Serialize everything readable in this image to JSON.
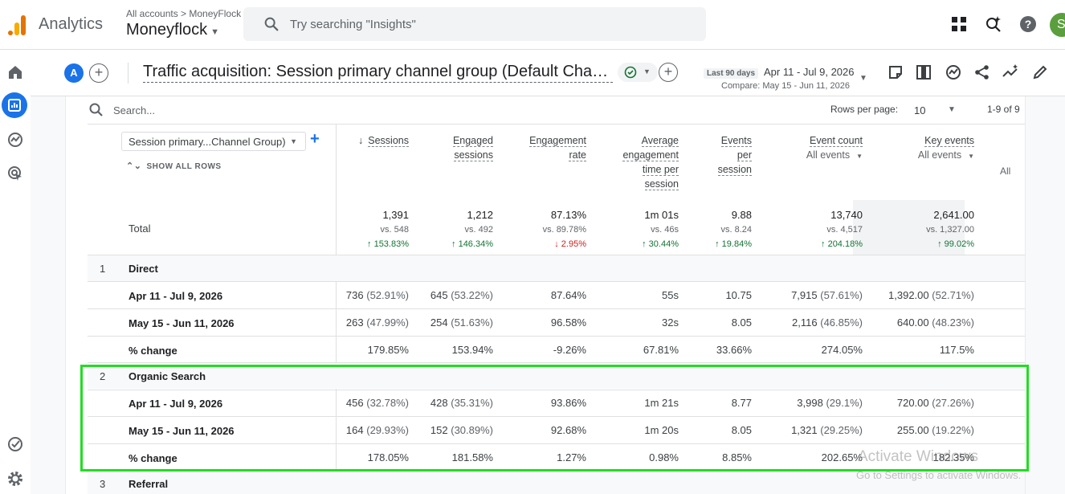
{
  "app": {
    "name": "Analytics",
    "breadcrumb": "All accounts > MoneyFlock",
    "account": "Moneyflock",
    "search_placeholder": "Try searching \"Insights\"",
    "user_initial": "S"
  },
  "report": {
    "property_badge": "A",
    "title": "Traffic acquisition: Session primary channel group (Default Chan...",
    "date_preset": "Last 90 days",
    "date_range": "Apr 11 - Jul 9, 2026",
    "compare_range": "Compare: May 15 - Jun 11, 2026"
  },
  "table_controls": {
    "search_placeholder": "Search...",
    "rows_per_page_label": "Rows per page:",
    "rows_per_page_value": "10",
    "pagination": "1-9 of 9"
  },
  "dimension": {
    "selector_label": "Session primary...Channel Group)",
    "show_all_rows": "SHOW ALL ROWS"
  },
  "columns": [
    {
      "lines": [
        "Sessions"
      ],
      "sorted": true
    },
    {
      "lines": [
        "Engaged",
        "sessions"
      ]
    },
    {
      "lines": [
        "Engagement",
        "rate"
      ]
    },
    {
      "lines": [
        "Average",
        "engagement",
        "time per",
        "session"
      ]
    },
    {
      "lines": [
        "Events",
        "per",
        "session"
      ]
    },
    {
      "lines": [
        "Event count"
      ],
      "sub": "All events"
    },
    {
      "lines": [
        "Key events"
      ],
      "sub": "All events"
    }
  ],
  "overflow_column_label": "All",
  "totals": {
    "label": "Total",
    "values": [
      "1,391",
      "1,212",
      "87.13%",
      "1m 01s",
      "9.88",
      "13,740",
      "2,641.00"
    ],
    "compare": [
      "vs. 548",
      "vs. 492",
      "vs. 89.78%",
      "vs. 46s",
      "vs. 8.24",
      "vs. 4,517",
      "vs. 1,327.00"
    ],
    "change": [
      "↑ 153.83%",
      "↑ 146.34%",
      "↓ 2.95%",
      "↑ 30.44%",
      "↑ 19.84%",
      "↑ 204.18%",
      "↑ 99.02%"
    ],
    "change_direction": [
      "up",
      "up",
      "down",
      "up",
      "up",
      "up",
      "up"
    ]
  },
  "groups": [
    {
      "index": "1",
      "name": "Direct",
      "rows": [
        {
          "label": "Apr 11 - Jul 9, 2026",
          "cells": [
            [
              "736",
              "(52.91%)"
            ],
            [
              "645",
              "(53.22%)"
            ],
            [
              "87.64%",
              ""
            ],
            [
              "55s",
              ""
            ],
            [
              "10.75",
              ""
            ],
            [
              "7,915",
              "(57.61%)"
            ],
            [
              "1,392.00",
              "(52.71%)"
            ]
          ]
        },
        {
          "label": "May 15 - Jun 11, 2026",
          "cells": [
            [
              "263",
              "(47.99%)"
            ],
            [
              "254",
              "(51.63%)"
            ],
            [
              "96.58%",
              ""
            ],
            [
              "32s",
              ""
            ],
            [
              "8.05",
              ""
            ],
            [
              "2,116",
              "(46.85%)"
            ],
            [
              "640.00",
              "(48.23%)"
            ]
          ]
        },
        {
          "label": "% change",
          "cells": [
            [
              "179.85%",
              ""
            ],
            [
              "153.94%",
              ""
            ],
            [
              "-9.26%",
              ""
            ],
            [
              "67.81%",
              ""
            ],
            [
              "33.66%",
              ""
            ],
            [
              "274.05%",
              ""
            ],
            [
              "117.5%",
              ""
            ]
          ]
        }
      ]
    },
    {
      "index": "2",
      "name": "Organic Search",
      "rows": [
        {
          "label": "Apr 11 - Jul 9, 2026",
          "cells": [
            [
              "456",
              "(32.78%)"
            ],
            [
              "428",
              "(35.31%)"
            ],
            [
              "93.86%",
              ""
            ],
            [
              "1m 21s",
              ""
            ],
            [
              "8.77",
              ""
            ],
            [
              "3,998",
              "(29.1%)"
            ],
            [
              "720.00",
              "(27.26%)"
            ]
          ]
        },
        {
          "label": "May 15 - Jun 11, 2026",
          "cells": [
            [
              "164",
              "(29.93%)"
            ],
            [
              "152",
              "(30.89%)"
            ],
            [
              "92.68%",
              ""
            ],
            [
              "1m 20s",
              ""
            ],
            [
              "8.05",
              ""
            ],
            [
              "1,321",
              "(29.25%)"
            ],
            [
              "255.00",
              "(19.22%)"
            ]
          ]
        },
        {
          "label": "% change",
          "cells": [
            [
              "178.05%",
              ""
            ],
            [
              "181.58%",
              ""
            ],
            [
              "1.27%",
              ""
            ],
            [
              "0.98%",
              ""
            ],
            [
              "8.85%",
              ""
            ],
            [
              "202.65%",
              ""
            ],
            [
              "182.35%",
              ""
            ]
          ]
        }
      ]
    },
    {
      "index": "3",
      "name": "Referral",
      "rows": []
    }
  ],
  "watermark": {
    "line1": "Activate Windows",
    "line2": "Go to Settings to activate Windows."
  },
  "colors": {
    "accent": "#1a73e8",
    "positive": "#137333",
    "negative": "#c5221f",
    "highlight_box": "#22dd22"
  }
}
